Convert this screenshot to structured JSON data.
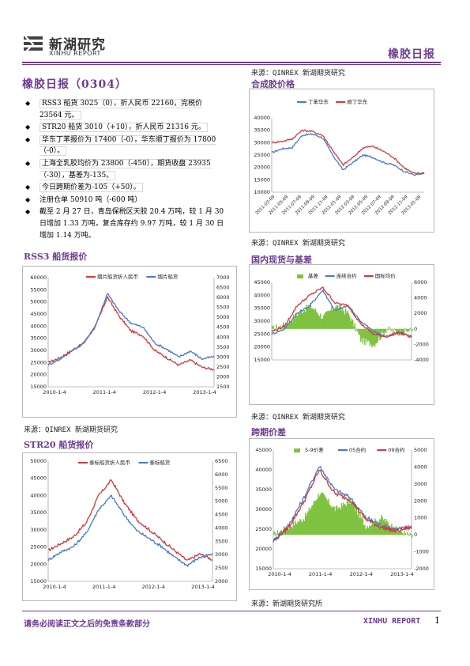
{
  "header": {
    "logo_cn": "新湖研究",
    "logo_en": "XINHU REPORT",
    "report_title": "橡胶日报"
  },
  "main_title": "橡胶日报（0304）",
  "bullets": [
    "RSS3 船货 3025（0），折人民币 22160，完税价 23564 元。",
    "STR20 船货 3010（+10），折人民币 21316 元。",
    "华东丁苯报价为 17400（-0），华东顺丁报价为 17800（-0）。",
    "上海全乳胶均价为 23800（-450），期货收盘 23935（-30），基差为-135。",
    "今日跨期价差为-105（+50）。",
    "注册仓单 50910 吨（-600 吨）",
    "截至 2 月 27 日，青岛保税区天胶 20.4 万吨，较 1 月 30 日增加 1.33 万吨，复合库存约 9.97 万吨，较 1 月 30 日增加 1.14 万吨。"
  ],
  "sections": {
    "rss3_title": "RSS3 船货报价",
    "str20_title": "STR20 船货报价",
    "synth_title": "合成胶价格",
    "basis_title": "国内现货与基差",
    "spread_title": "跨期价差"
  },
  "sources": {
    "s1": "来源：QINREX 新湖期货研究",
    "s2": "来源：QINREX 新湖期货研究",
    "s3": "来源：QINREX 新湖期货研究",
    "s4": "来源：QINREX 新湖期货研究",
    "s5": "来源：新湖期货研究所"
  },
  "footer": {
    "disclaimer": "请务必阅读正文之后的免责条款部分",
    "brand": "XINHU REPORT",
    "page": "1"
  },
  "colors": {
    "brand_purple": "#6c3b92",
    "series_red": "#d03a3a",
    "series_blue": "#4a78c8",
    "series_green": "#7fc241"
  },
  "chart_data": [
    {
      "id": "synth",
      "type": "line",
      "legend": [
        "丁苯华东",
        "顺丁华东"
      ],
      "ylim": [
        10000,
        40000
      ],
      "yticks": [
        "40000",
        "35000",
        "30000",
        "25000",
        "20000",
        "15000",
        "10000"
      ],
      "xticks": [
        "2011-03-09",
        "2011-05-09",
        "2011-07-09",
        "2011-09-09",
        "2011-11-09",
        "2012-01-09",
        "2012-03-09",
        "2012-05-09",
        "2012-07-09",
        "2012-09-09",
        "2012-11-09",
        "2013-01-09"
      ],
      "series": [
        {
          "name": "丁苯华东",
          "values": [
            26000,
            27500,
            28000,
            33000,
            33500,
            32000,
            25000,
            19000,
            22000,
            25000,
            24000,
            22000,
            21000,
            18500,
            17000,
            17400
          ]
        },
        {
          "name": "顺丁华东",
          "values": [
            30000,
            30500,
            31500,
            35000,
            34500,
            33000,
            27000,
            21000,
            24000,
            28000,
            28500,
            26500,
            24000,
            20000,
            17500,
            17800
          ]
        }
      ]
    },
    {
      "id": "rss3",
      "type": "line",
      "legend": [
        "烟片船货折人民币",
        "烟片船货"
      ],
      "ylim_left": [
        15000,
        60000
      ],
      "ylim_right": [
        1500,
        7000
      ],
      "yticks_left": [
        "60000",
        "55000",
        "50000",
        "45000",
        "40000",
        "35000",
        "30000",
        "25000",
        "20000",
        "15000"
      ],
      "yticks_right": [
        "7000",
        "6500",
        "6000",
        "5500",
        "5000",
        "4500",
        "4000",
        "3500",
        "3000",
        "2500",
        "2000",
        "1500"
      ],
      "xticks": [
        "2010-1-4",
        "2011-1-4",
        "2012-1-4",
        "2013-1-4"
      ],
      "series": [
        {
          "name": "烟片船货折人民币",
          "values": [
            25000,
            27000,
            30000,
            33000,
            40000,
            52000,
            44000,
            38000,
            36000,
            30000,
            27000,
            24000,
            26000,
            23000,
            22160
          ]
        },
        {
          "name": "烟片船货",
          "values": [
            2600,
            2900,
            3300,
            3700,
            4600,
            6200,
            5300,
            4700,
            4500,
            3700,
            3400,
            3000,
            3300,
            2900,
            3025
          ]
        }
      ]
    },
    {
      "id": "basis",
      "type": "line",
      "legend": [
        "基差",
        "连续合约",
        "国标均价"
      ],
      "ylim_left": [
        15000,
        45000
      ],
      "ylim_right": [
        -4000,
        6000
      ],
      "yticks_left": [
        "45000",
        "40000",
        "35000",
        "30000",
        "25000",
        "20000",
        "15000"
      ],
      "yticks_right": [
        "6000",
        "4000",
        "2000",
        "0",
        "-2000",
        "-4000"
      ],
      "series": [
        {
          "name": "基差",
          "values": [
            0,
            500,
            2000,
            3000,
            1500,
            3000,
            2000,
            -1500,
            -2000,
            0,
            -500,
            -135
          ]
        },
        {
          "name": "连续合约",
          "values": [
            25000,
            27000,
            33000,
            36000,
            42000,
            34000,
            36000,
            30000,
            26000,
            24000,
            26000,
            23935
          ]
        },
        {
          "name": "国标均价",
          "values": [
            26000,
            28000,
            36000,
            40000,
            43000,
            37000,
            36000,
            29000,
            25000,
            24000,
            25500,
            23800
          ]
        }
      ]
    },
    {
      "id": "str20",
      "type": "line",
      "legend": [
        "泰标船货折人民币",
        "泰标船货"
      ],
      "ylim_left": [
        15000,
        50000
      ],
      "ylim_right": [
        2000,
        6500
      ],
      "yticks_left": [
        "50000",
        "45000",
        "40000",
        "35000",
        "30000",
        "25000",
        "20000",
        "15000"
      ],
      "yticks_right": [
        "6500",
        "6000",
        "5500",
        "5000",
        "4500",
        "4000",
        "3500",
        "3000",
        "2500",
        "2000"
      ],
      "xticks": [
        "2010-1-4",
        "2011-1-4",
        "2012-1-4",
        "2013-1-4"
      ],
      "series": [
        {
          "name": "泰标船货折人民币",
          "values": [
            24000,
            26000,
            28000,
            32000,
            40000,
            44500,
            38000,
            33000,
            30000,
            27000,
            24000,
            21000,
            23000,
            21316
          ]
        },
        {
          "name": "泰标船货",
          "values": [
            2800,
            3100,
            3300,
            3800,
            4700,
            5200,
            4500,
            3900,
            3600,
            3300,
            2900,
            2600,
            2900,
            3010
          ]
        }
      ]
    },
    {
      "id": "spread",
      "type": "line",
      "legend": [
        "5-9价差",
        "05合约",
        "09合约"
      ],
      "ylim_left": [
        15000,
        45000
      ],
      "ylim_right": [
        -2000,
        5000
      ],
      "yticks_left": [
        "45000",
        "40000",
        "35000",
        "30000",
        "25000",
        "20000",
        "15000"
      ],
      "yticks_right": [
        "5000",
        "4000",
        "3000",
        "2000",
        "1000",
        "0",
        "-1000",
        "-2000"
      ],
      "xticks": [
        "2010-1-4",
        "2011-1-4",
        "2012-1-4",
        "2013-1-4"
      ],
      "series": [
        {
          "name": "5-9价差",
          "values": [
            0,
            500,
            1000,
            2500,
            1500,
            2000,
            500,
            1000,
            300,
            -105
          ]
        },
        {
          "name": "05合约",
          "values": [
            22000,
            26000,
            33000,
            41000,
            35000,
            33000,
            28000,
            26000,
            25000,
            25500
          ]
        },
        {
          "name": "09合约",
          "values": [
            22000,
            25500,
            32000,
            40000,
            34000,
            32500,
            27500,
            25500,
            24500,
            25600
          ]
        }
      ]
    }
  ]
}
